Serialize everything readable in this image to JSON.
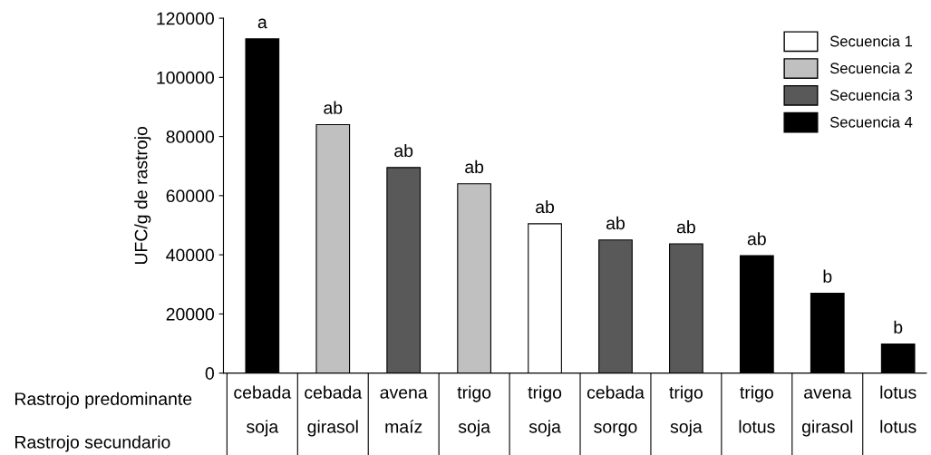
{
  "chart_data": {
    "type": "bar",
    "ylabel": "UFC/g de rastrojo",
    "categories": [
      "cebada\nsoja",
      "cebada\ngirasol",
      "avena\nmaíz",
      "trigo\nsoja",
      "trigo\nsoja",
      "cebada\nsorgo",
      "trigo\nsoja",
      "trigo\nlotus",
      "avena\ngirasol",
      "lotus\nlotus"
    ],
    "series": [
      {
        "name": "Secuencia 1",
        "color": "#ffffff",
        "values": [
          null,
          null,
          null,
          null,
          50500,
          null,
          null,
          null,
          null,
          null
        ]
      },
      {
        "name": "Secuencia 2",
        "color": "#c0c0c0",
        "values": [
          null,
          84000,
          null,
          64000,
          null,
          null,
          null,
          null,
          null,
          null
        ]
      },
      {
        "name": "Secuencia 3",
        "color": "#595959",
        "values": [
          null,
          null,
          69500,
          null,
          null,
          45000,
          43700,
          null,
          null,
          null
        ]
      },
      {
        "name": "Secuencia 4",
        "color": "#000000",
        "values": [
          113000,
          null,
          null,
          null,
          null,
          null,
          null,
          39700,
          27000,
          9800
        ]
      }
    ],
    "value_labels": [
      "a",
      "ab",
      "ab",
      "ab",
      "ab",
      "ab",
      "ab",
      "ab",
      "b",
      "b"
    ],
    "annotations": [
      "Rastrojo predominante",
      "Rastrojo secundario"
    ],
    "ylim": [
      0,
      120000
    ],
    "yticks": [
      0,
      20000,
      40000,
      60000,
      80000,
      100000,
      120000
    ],
    "grid": false,
    "legend": "top right"
  }
}
